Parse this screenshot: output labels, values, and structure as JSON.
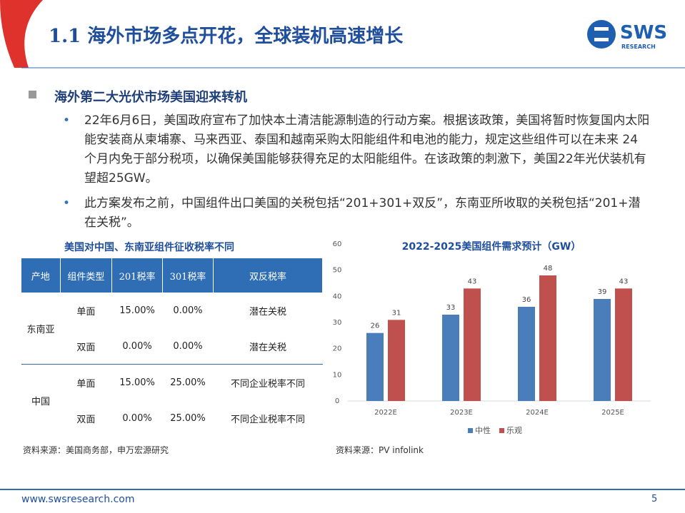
{
  "header": {
    "title": "1.1 海外市场多点开花，全球装机高速增长",
    "logo": "SWS",
    "logo_sub": "RESEARCH"
  },
  "section": {
    "heading": "海外第二大光伏市场美国迎来转机",
    "bullets": [
      "22年6月6日，美国政府宣布了加快本土清洁能源制造的行动方案。根据该政策，美国将暂时恢复国内太阳能安装商从柬埔寨、马来西亚、泰国和越南采购太阳能组件和电池的能力，规定这些组件可以在未来 24 个月内免于部分税项，以确保美国能够获得充足的太阳能组件。在该政策的刺激下，美国22年光伏装机有望超25GW。",
      "此方案发布之前，中国组件出口美国的关税包括“201+301+双反”，东南亚所收取的关税包括“201+潜在关税”。"
    ]
  },
  "table": {
    "title": "美国对中国、东南亚组件征收税率不同",
    "header": [
      "产地",
      "组件类型",
      "201税率",
      "301税率",
      "双反税率"
    ],
    "groups": [
      {
        "region": "东南亚",
        "rows": [
          [
            "单面",
            "15.00%",
            "0.00%",
            "潜在关税"
          ],
          [
            "双面",
            "0.00%",
            "0.00%",
            "潜在关税"
          ]
        ]
      },
      {
        "region": "中国",
        "rows": [
          [
            "单面",
            "15.00%",
            "25.00%",
            "不同企业税率不同"
          ],
          [
            "双面",
            "0.00%",
            "25.00%",
            "不同企业税率不同"
          ]
        ]
      }
    ],
    "source": "资料来源：美国商务部，申万宏源研究"
  },
  "chart_data": {
    "type": "bar",
    "title": "2022-2025美国组件需求预计（GW）",
    "categories": [
      "2022E",
      "2023E",
      "2024E",
      "2025E"
    ],
    "series": [
      {
        "name": "中性",
        "color": "#4a7ebb",
        "values": [
          26,
          33,
          36,
          39
        ]
      },
      {
        "name": "乐观",
        "color": "#c0504d",
        "values": [
          31,
          43,
          48,
          43
        ]
      }
    ],
    "ylim": [
      0,
      60
    ],
    "yticks": [
      0,
      10,
      20,
      30,
      40,
      50,
      60
    ],
    "grid": false,
    "legend": "bottom"
  },
  "chart_source": "资料来源：PV infolink",
  "footer": {
    "url": "www.swsresearch.com",
    "page": "5"
  }
}
